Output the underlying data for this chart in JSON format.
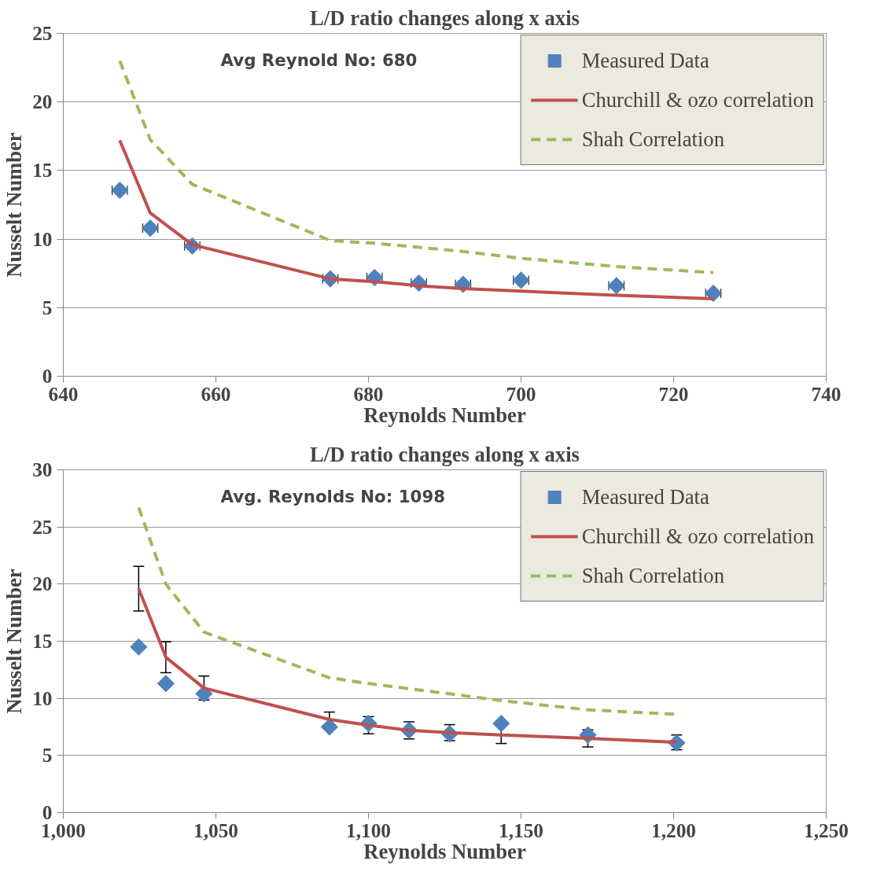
{
  "chart_data": [
    {
      "type": "scatter",
      "title": "L/D ratio changes along x axis",
      "xlabel": "Reynolds Number",
      "ylabel": "Nusselt Number",
      "annotations": [
        "Avg Reynold No: 680"
      ],
      "x": [
        647.4,
        651.4,
        656.9,
        675.0,
        680.8,
        686.6,
        692.4,
        700.0,
        712.5,
        725.2
      ],
      "series": [
        {
          "name": "Measured Data",
          "marker": "diamond",
          "color": "#4f81bd",
          "values": [
            13.56,
            10.8,
            9.5,
            7.1,
            7.2,
            6.8,
            6.7,
            7.0,
            6.6,
            6.05
          ],
          "xerrors": [
            1,
            1,
            1,
            1,
            1,
            1,
            1,
            1,
            1,
            1
          ]
        },
        {
          "name": "Churchill & ozo correlation",
          "type": "line",
          "line_style": "solid",
          "color": "#c0504d",
          "values": [
            17.2,
            11.9,
            9.6,
            7.1,
            6.9,
            6.6,
            6.4,
            6.2,
            5.9,
            5.65
          ]
        },
        {
          "name": "Shah Correlation",
          "type": "line",
          "line_style": "dashed",
          "color": "#9bbb59",
          "values": [
            23.0,
            17.25,
            14.0,
            9.9,
            9.7,
            9.4,
            9.1,
            8.6,
            8.0,
            7.55
          ]
        }
      ],
      "xlim": [
        640,
        740
      ],
      "xticks": [
        640,
        660,
        680,
        700,
        720,
        740
      ],
      "ylim": [
        0,
        25
      ],
      "yticks": [
        0,
        5,
        10,
        15,
        20,
        25
      ],
      "grid": "y",
      "legend": "top right"
    },
    {
      "type": "scatter",
      "title": "L/D ratio changes along x axis",
      "xlabel": "Reynolds Number",
      "ylabel": "Nusselt Number",
      "annotations": [
        "Avg. Reynolds No: 1098"
      ],
      "x": [
        1024.7,
        1033.6,
        1046.1,
        1087.2,
        1100.0,
        1113.3,
        1126.6,
        1143.5,
        1171.9,
        1201.0
      ],
      "series": [
        {
          "name": "Measured Data",
          "marker": "diamond",
          "color": "#4f81bd",
          "values": [
            14.5,
            11.3,
            10.4,
            7.5,
            7.8,
            7.2,
            6.9,
            7.8,
            6.8,
            6.1
          ]
        },
        {
          "name": "Churchill & ozo correlation",
          "type": "line",
          "line_style": "solid",
          "color": "#c0504d",
          "values": [
            19.6,
            13.6,
            10.9,
            8.15,
            7.65,
            7.2,
            7.0,
            6.8,
            6.5,
            6.15
          ],
          "errors": [
            1.95,
            1.35,
            1.05,
            0.65,
            0.75,
            0.75,
            0.7,
            0.75,
            0.75,
            0.65
          ]
        },
        {
          "name": "Shah Correlation",
          "type": "line",
          "line_style": "dashed",
          "color": "#9bbb59",
          "values": [
            26.7,
            20.0,
            15.8,
            11.8,
            11.3,
            10.85,
            10.4,
            9.8,
            9.0,
            8.6
          ]
        }
      ],
      "xlim": [
        1000,
        1250
      ],
      "xticks": [
        {
          "value": 1000,
          "label": "1,000"
        },
        {
          "value": 1050,
          "label": "1,050"
        },
        {
          "value": 1100,
          "label": "1,100"
        },
        {
          "value": 1150,
          "label": "1,150"
        },
        {
          "value": 1200,
          "label": "1,200"
        },
        {
          "value": 1250,
          "label": "1,250"
        }
      ],
      "ylim": [
        0,
        30
      ],
      "yticks": [
        0,
        5,
        10,
        15,
        20,
        25,
        30
      ],
      "grid": "y",
      "legend": "top right"
    }
  ]
}
